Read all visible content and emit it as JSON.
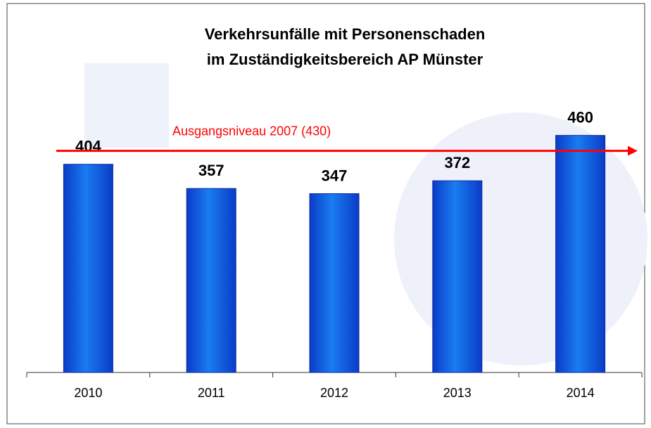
{
  "chart_data": {
    "type": "bar",
    "title": [
      "Verkehrsunfälle mit Personenschaden",
      "im Zuständigkeitsbereich AP Münster"
    ],
    "categories": [
      "2010",
      "2011",
      "2012",
      "2013",
      "2014"
    ],
    "values": [
      404,
      357,
      347,
      372,
      460
    ],
    "color": "#1a7cf0",
    "ylim": [
      0,
      600
    ],
    "reference_line": {
      "value": 430,
      "label": "Ausgangsniveau 2007 (430)",
      "color": "#ff0000"
    }
  }
}
